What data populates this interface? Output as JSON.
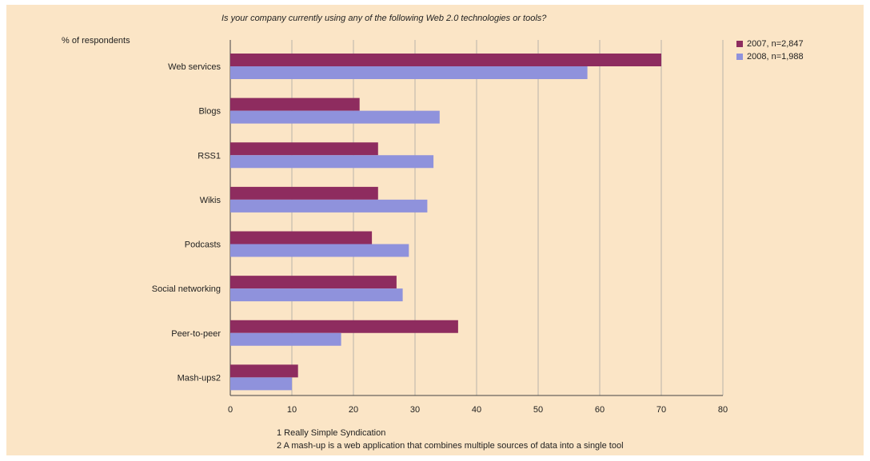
{
  "chart_data": {
    "type": "bar",
    "orientation": "horizontal",
    "title": "Is your company currently using any of the following Web 2.0 technologies or tools?",
    "ylabel": "% of respondents",
    "categories": [
      "Web services",
      "Blogs",
      "RSS1",
      "Wikis",
      "Podcasts",
      "Social networking",
      "Peer-to-peer",
      "Mash-ups2"
    ],
    "series": [
      {
        "name": "2007, n=2,847",
        "color": "#8e2c5f",
        "values": [
          70,
          21,
          24,
          24,
          23,
          27,
          37,
          11
        ]
      },
      {
        "name": "2008, n=1,988",
        "color": "#8f92dc",
        "values": [
          58,
          34,
          33,
          32,
          29,
          28,
          18,
          10
        ]
      }
    ],
    "xlim": [
      0,
      80
    ],
    "xticks": [
      "0",
      "10",
      "20",
      "30",
      "40",
      "50",
      "60",
      "70",
      "80"
    ],
    "grid": true,
    "legend": "top-right",
    "footnotes": [
      "1 Really Simple Syndication",
      "2 A mash-up is a web application that combines multiple sources of data into a single tool"
    ]
  }
}
